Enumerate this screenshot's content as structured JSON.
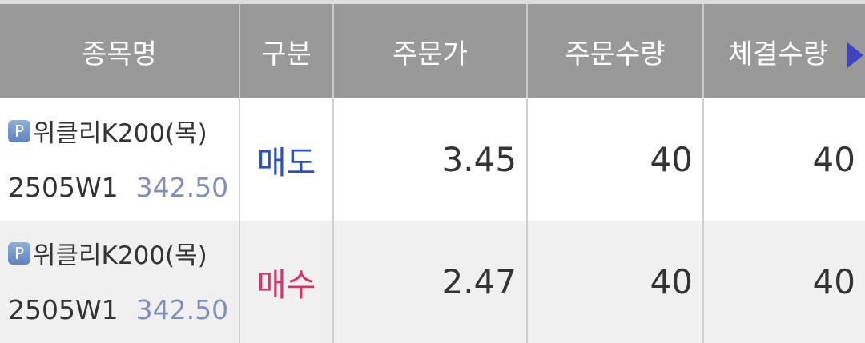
{
  "header": {
    "columns": [
      "종목명",
      "구분",
      "주문가",
      "주문수량",
      "체결수량"
    ]
  },
  "rows": [
    {
      "badge": "P",
      "name": "위클리K200(목)",
      "code": "2505W1",
      "price": "342.50",
      "side": "매도",
      "side_color": "#2a52be",
      "order_price": "3.45",
      "order_qty": "40",
      "filled_qty": "40"
    },
    {
      "badge": "P",
      "name": "위클리K200(목)",
      "code": "2505W1",
      "price": "342.50",
      "side": "매수",
      "side_color": "#d6336c",
      "order_price": "2.47",
      "order_qty": "40",
      "filled_qty": "40"
    }
  ]
}
